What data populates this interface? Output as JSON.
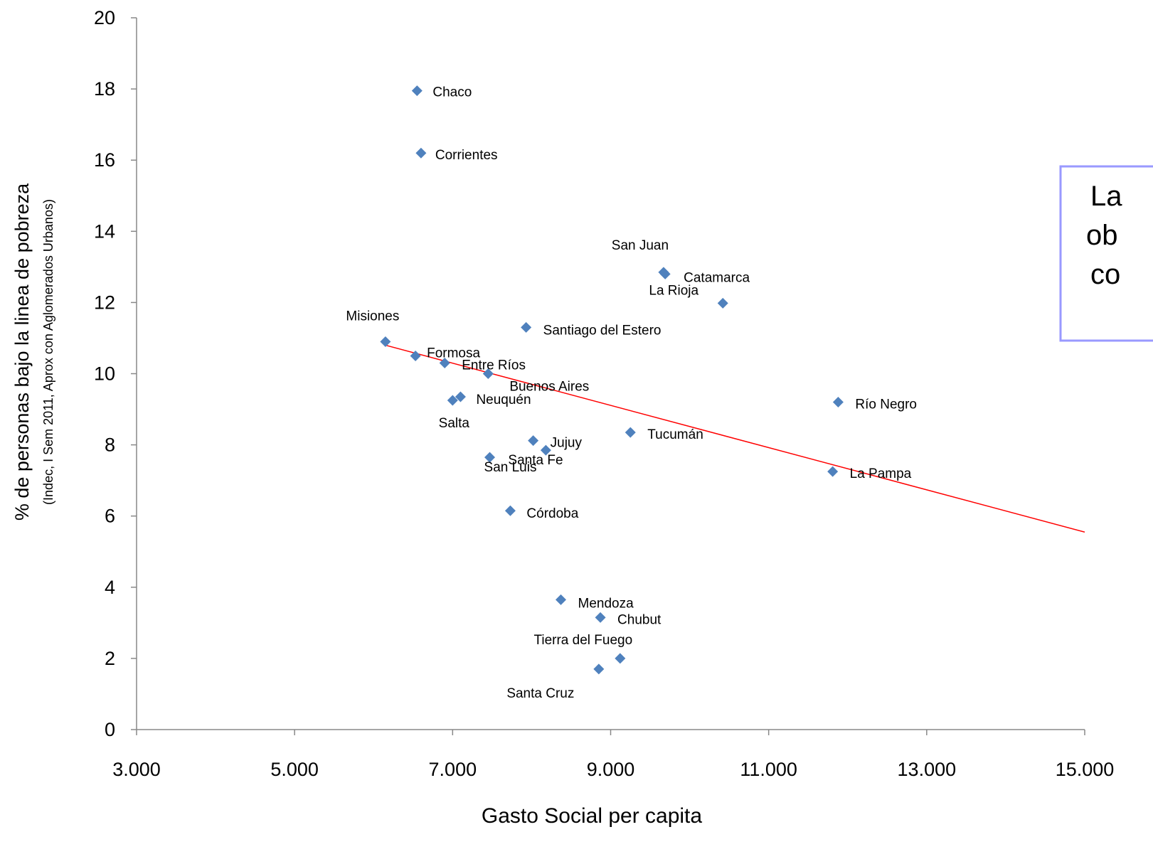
{
  "chart_data": {
    "type": "scatter",
    "xlabel": "Gasto  Social per capita",
    "ylabel": "% de personas  bajo la linea de pobreza",
    "ylabel_sub": "(Indec, I Sem 2011, Aprox con Aglomerados Urbanos)",
    "xlim": [
      3000,
      15000
    ],
    "ylim": [
      0,
      20
    ],
    "x_ticks": [
      3000,
      5000,
      7000,
      9000,
      11000,
      13000,
      15000
    ],
    "x_tick_labels": [
      "3.000",
      "5.000",
      "7.000",
      "9.000",
      "11.000",
      "13.000",
      "15.000"
    ],
    "y_ticks": [
      0,
      2,
      4,
      6,
      8,
      10,
      12,
      14,
      16,
      18,
      20
    ],
    "y_tick_labels": [
      "0",
      "2",
      "4",
      "6",
      "8",
      "10",
      "12",
      "14",
      "16",
      "18",
      "20"
    ],
    "grid": false,
    "legend": "none",
    "marker_color": "#4f81bd",
    "trendline_color": "#ff0000",
    "trendline": {
      "x": [
        6150,
        15000
      ],
      "y": [
        10.8,
        5.55
      ]
    },
    "points": [
      {
        "name": "Chaco",
        "x": 6550,
        "y": 17.95
      },
      {
        "name": "Corrientes",
        "x": 6600,
        "y": 16.2
      },
      {
        "name": "Misiones",
        "x": 6150,
        "y": 10.9
      },
      {
        "name": "Formosa",
        "x": 6530,
        "y": 10.5
      },
      {
        "name": "Entre Ríos",
        "x": 6900,
        "y": 10.3
      },
      {
        "name": "Buenos Aires",
        "x": 7450,
        "y": 10.0
      },
      {
        "name": "Neuquén",
        "x": 7100,
        "y": 9.35
      },
      {
        "name": "Salta",
        "x": 7000,
        "y": 9.25
      },
      {
        "name": "Santiago del Estero",
        "x": 7930,
        "y": 11.3
      },
      {
        "name": "San Juan",
        "x": 9670,
        "y": 12.85
      },
      {
        "name": "Catamarca",
        "x": 9690,
        "y": 12.8
      },
      {
        "name": "La Rioja",
        "x": 10420,
        "y": 11.98
      },
      {
        "name": "Jujuy",
        "x": 8020,
        "y": 8.12
      },
      {
        "name": "Santa Fe",
        "x": 8180,
        "y": 7.85
      },
      {
        "name": "San Luis",
        "x": 7470,
        "y": 7.65
      },
      {
        "name": "Tucumán",
        "x": 9250,
        "y": 8.35
      },
      {
        "name": "Córdoba",
        "x": 7730,
        "y": 6.15
      },
      {
        "name": "Río Negro",
        "x": 11880,
        "y": 9.2
      },
      {
        "name": "La Pampa",
        "x": 11810,
        "y": 7.25
      },
      {
        "name": "Mendoza",
        "x": 8370,
        "y": 3.65
      },
      {
        "name": "Chubut",
        "x": 8870,
        "y": 3.15
      },
      {
        "name": "Tierra del Fuego",
        "x": 9120,
        "y": 2.0
      },
      {
        "name": "Santa Cruz",
        "x": 8850,
        "y": 1.7
      }
    ]
  },
  "annotation": {
    "lines": [
      "La",
      "ob",
      "co"
    ],
    "border_color": "#9999ff"
  }
}
